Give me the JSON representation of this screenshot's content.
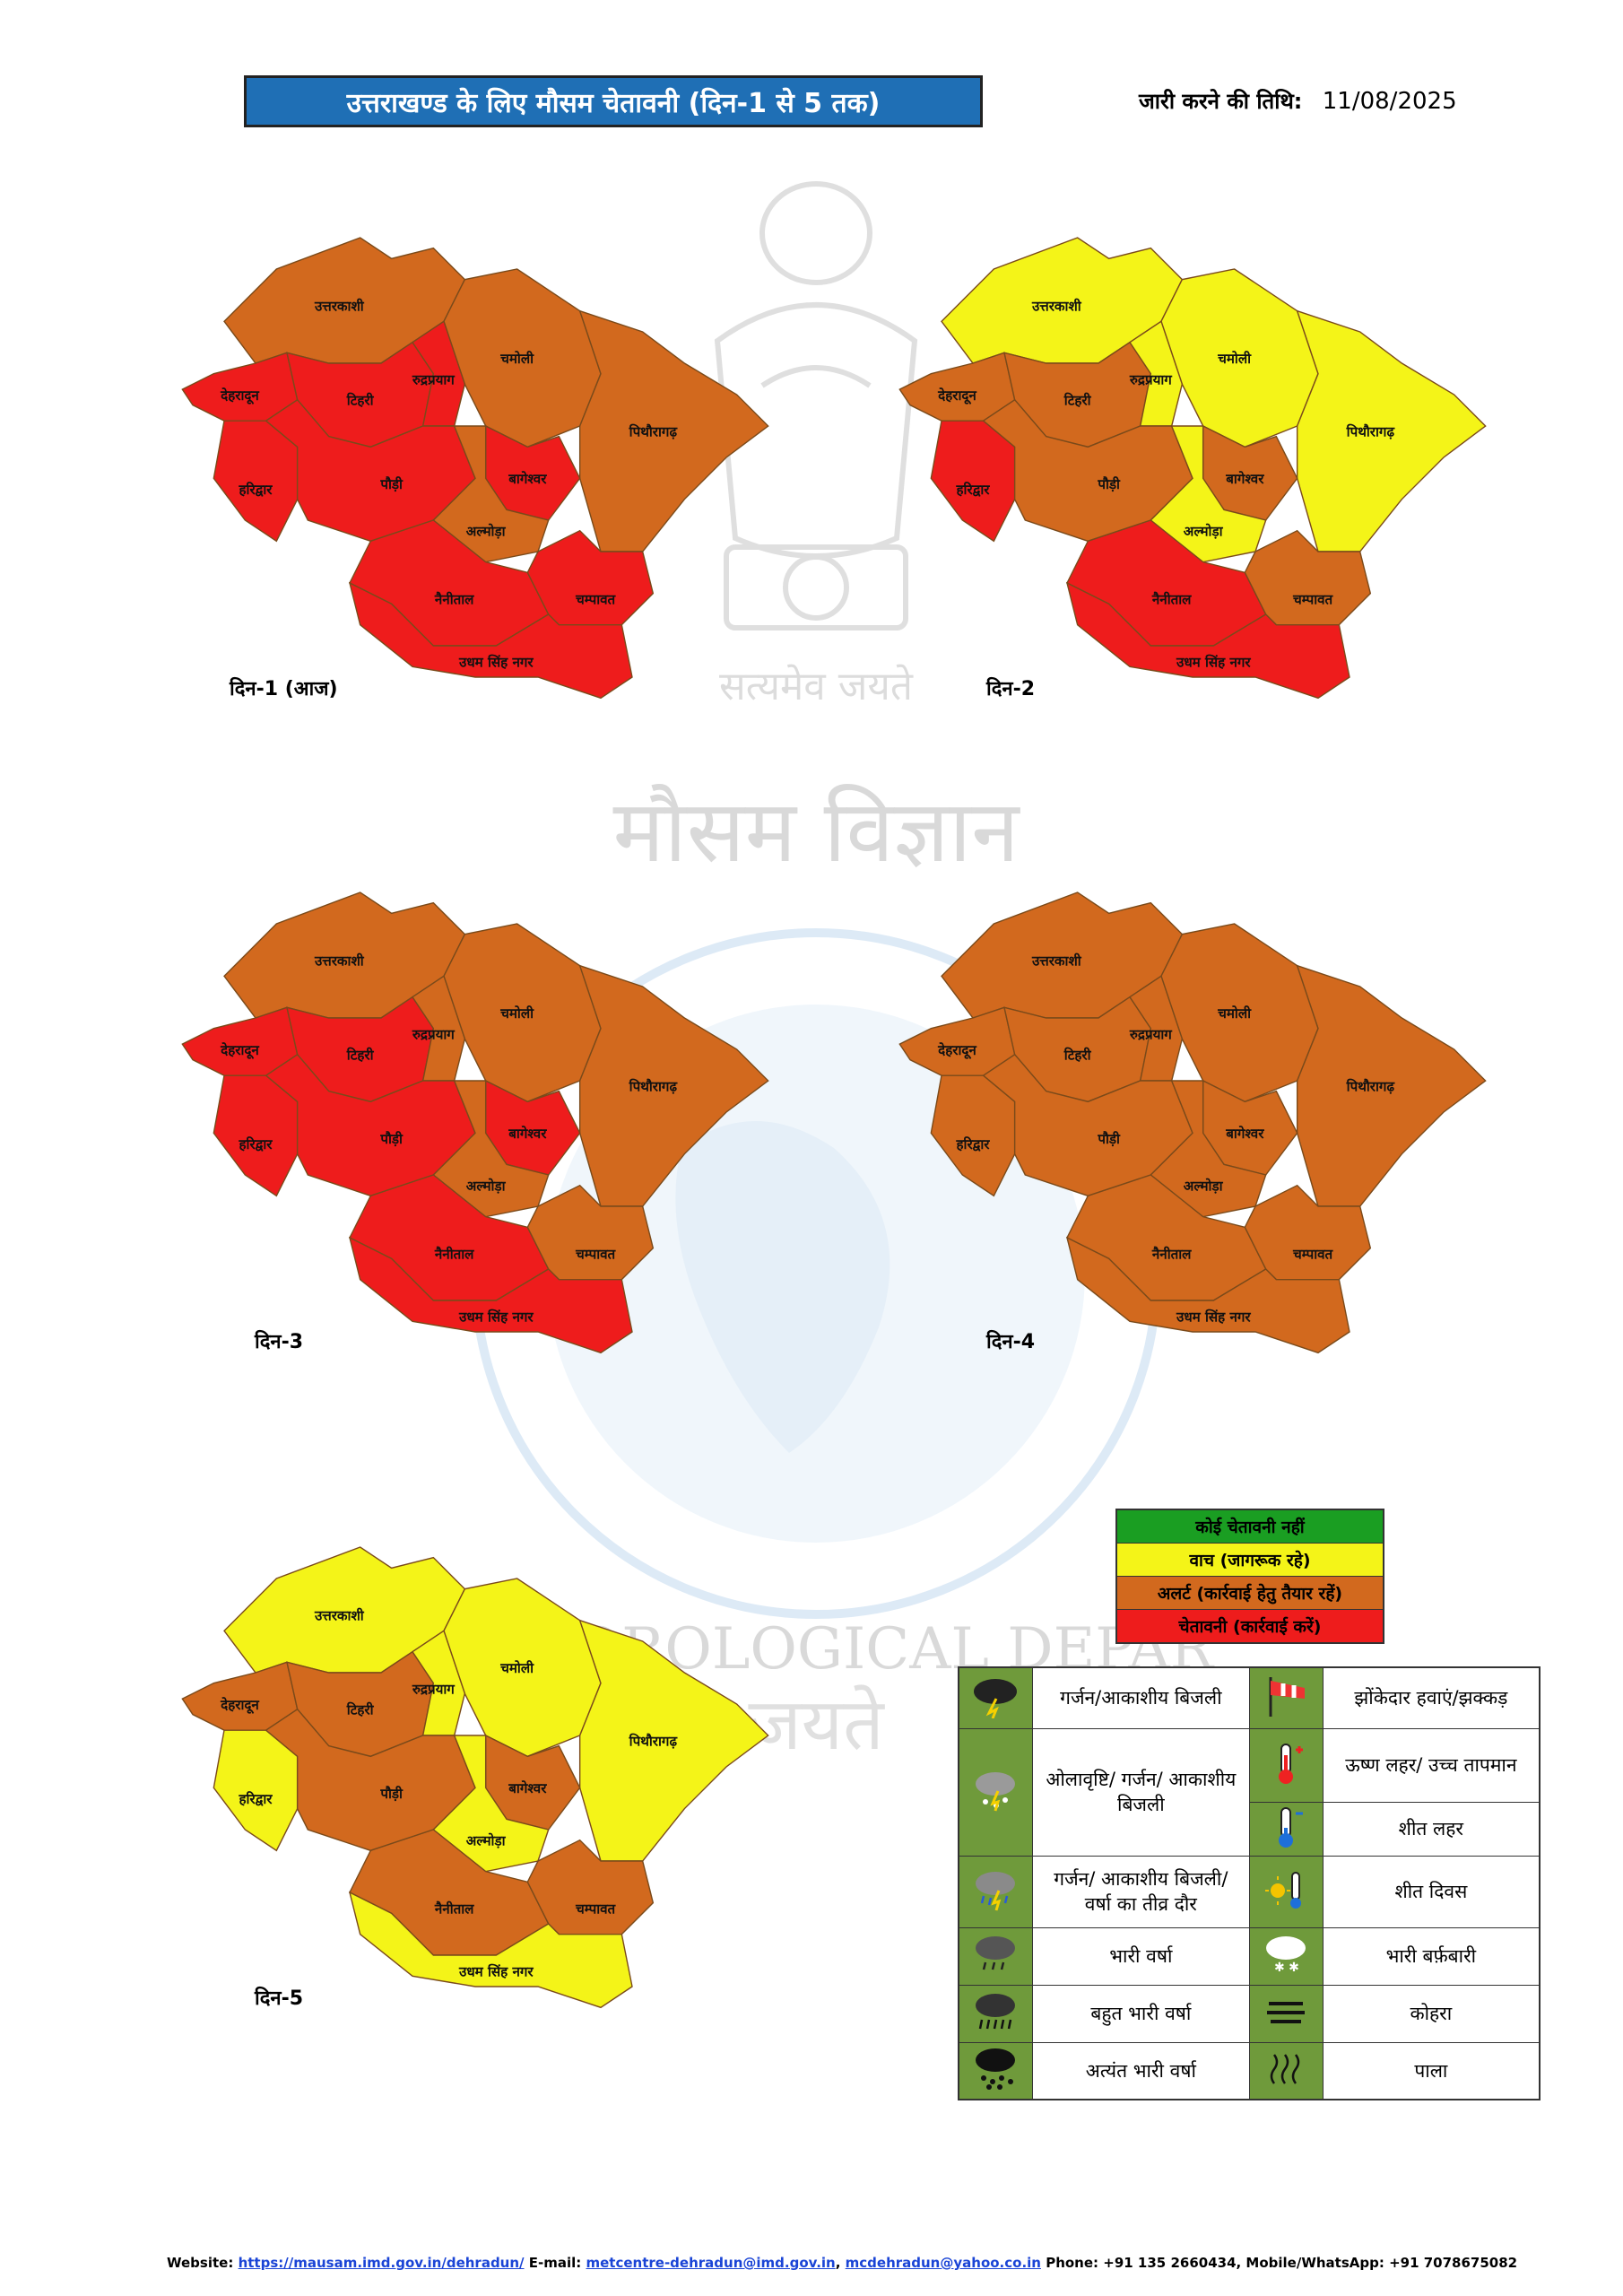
{
  "header": {
    "title": "उत्तराखण्ड के लिए मौसम चेतावनी (दिन-1 से 5 तक)",
    "issue_label": "जारी करने की तिथि:",
    "issue_date": "11/08/2025"
  },
  "emblem_text": "सत्यमेव जयते",
  "watermark_text": {
    "top": "मौसम विज्ञान",
    "ring": "INDIA METEOROLOGICAL DEPARTMENT",
    "bottom": "जयते"
  },
  "colors": {
    "none": "#1a9e22",
    "watch": "#f4f418",
    "alert": "#d2691e",
    "warning": "#ee1c1c"
  },
  "district_labels": {
    "uttarkashi": "उत्तरकाशी",
    "dehradun": "देहरादून",
    "tehri": "टिहरी",
    "rudraprayag": "रुद्रप्रयाग",
    "chamoli": "चमोली",
    "pithoragarh": "पिथौरागढ़",
    "haridwar": "हरिद्वार",
    "pauri": "पौड़ी",
    "bageshwar": "बागेश्वर",
    "almora": "अल्मोड़ा",
    "nainital": "नैनीताल",
    "champawat": "चम्पावत",
    "usnagar": "उधम सिंह नगर"
  },
  "days": [
    {
      "label": "दिन-1 (आज)",
      "levels": {
        "uttarkashi": "alert",
        "dehradun": "warning",
        "tehri": "warning",
        "rudraprayag": "warning",
        "chamoli": "alert",
        "pithoragarh": "alert",
        "haridwar": "warning",
        "pauri": "warning",
        "bageshwar": "warning",
        "almora": "alert",
        "nainital": "warning",
        "champawat": "warning",
        "usnagar": "warning"
      }
    },
    {
      "label": "दिन-2",
      "levels": {
        "uttarkashi": "watch",
        "dehradun": "alert",
        "tehri": "alert",
        "rudraprayag": "watch",
        "chamoli": "watch",
        "pithoragarh": "watch",
        "haridwar": "warning",
        "pauri": "alert",
        "bageshwar": "alert",
        "almora": "watch",
        "nainital": "warning",
        "champawat": "alert",
        "usnagar": "warning"
      }
    },
    {
      "label": "दिन-3",
      "levels": {
        "uttarkashi": "alert",
        "dehradun": "warning",
        "tehri": "warning",
        "rudraprayag": "alert",
        "chamoli": "alert",
        "pithoragarh": "alert",
        "haridwar": "warning",
        "pauri": "warning",
        "bageshwar": "warning",
        "almora": "alert",
        "nainital": "warning",
        "champawat": "alert",
        "usnagar": "warning"
      }
    },
    {
      "label": "दिन-4",
      "levels": {
        "uttarkashi": "alert",
        "dehradun": "alert",
        "tehri": "alert",
        "rudraprayag": "alert",
        "chamoli": "alert",
        "pithoragarh": "alert",
        "haridwar": "alert",
        "pauri": "alert",
        "bageshwar": "alert",
        "almora": "alert",
        "nainital": "alert",
        "champawat": "alert",
        "usnagar": "alert"
      }
    },
    {
      "label": "दिन-5",
      "levels": {
        "uttarkashi": "watch",
        "dehradun": "alert",
        "tehri": "alert",
        "rudraprayag": "watch",
        "chamoli": "watch",
        "pithoragarh": "watch",
        "haridwar": "watch",
        "pauri": "alert",
        "bageshwar": "alert",
        "almora": "watch",
        "nainital": "alert",
        "champawat": "alert",
        "usnagar": "watch"
      }
    }
  ],
  "color_legend": [
    {
      "label": "कोई चेतावनी नहीं",
      "level": "none"
    },
    {
      "label": "वाच (जागरूक रहे)",
      "level": "watch"
    },
    {
      "label": "अलर्ट (कार्रवाई हेतु तैयार रहें)",
      "level": "alert"
    },
    {
      "label": "चेतावनी (कार्रवाई करें)",
      "level": "warning"
    }
  ],
  "icon_legend": {
    "thunderstorm": "गर्जन/आकाशीय बिजली",
    "gusty_winds": "झोंकेदार हवाएं/झक्कड़",
    "hailstorm": "ओलावृष्टि/ गर्जन/ आकाशीय बिजली",
    "heat_wave": "ऊष्ण लहर/ उच्च तापमान",
    "cold_wave": "शीत लहर",
    "intense_spell": "गर्जन/ आकाशीय बिजली/ वर्षा का तीव्र दौर",
    "cold_day": "शीत दिवस",
    "heavy_rain": "भारी वर्षा",
    "heavy_snow": "भारी बर्फ़बारी",
    "very_heavy_rain": "बहुत भारी वर्षा",
    "fog": "कोहरा",
    "extremely_heavy_rain": "अत्यंत भारी वर्षा",
    "frost": "पाला"
  },
  "footer": {
    "website_label": "Website:",
    "website": "https://mausam.imd.gov.in/dehradun/",
    "email_label": "E-mail:",
    "email1": "metcentre-dehradun@imd.gov.in",
    "email2": "mcdehradun@yahoo.co.in",
    "phone": "Phone: +91 135 2660434, Mobile/WhatsApp: +91 7078675082"
  }
}
